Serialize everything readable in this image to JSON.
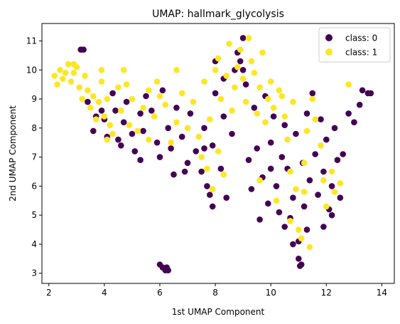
{
  "chart_data": {
    "type": "scatter",
    "title": "UMAP: hallmark_glycolysis",
    "xlabel": "1st UMAP Component",
    "ylabel": "2nd UMAP Component",
    "xlim": [
      1.75,
      14.45
    ],
    "ylim": [
      2.65,
      11.6
    ],
    "xticks": [
      2,
      4,
      6,
      8,
      10,
      12,
      14
    ],
    "yticks": [
      3,
      4,
      5,
      6,
      7,
      8,
      9,
      10,
      11
    ],
    "grid": false,
    "legend_position": "top-right",
    "colors": {
      "class0": "#440154",
      "class1": "#fde725"
    },
    "series": [
      {
        "name": "class: 0",
        "points": [
          [
            3.15,
            10.7
          ],
          [
            3.25,
            10.7
          ],
          [
            3.4,
            8.9
          ],
          [
            3.6,
            7.9
          ],
          [
            3.7,
            8.4
          ],
          [
            3.9,
            8.6
          ],
          [
            4.0,
            8.3
          ],
          [
            4.1,
            7.7
          ],
          [
            4.3,
            9.2
          ],
          [
            4.4,
            8.6
          ],
          [
            4.5,
            7.6
          ],
          [
            4.6,
            7.4
          ],
          [
            4.7,
            8.2
          ],
          [
            4.8,
            8.9
          ],
          [
            5.0,
            7.8
          ],
          [
            5.1,
            7.2
          ],
          [
            5.3,
            8.5
          ],
          [
            5.4,
            7.9
          ],
          [
            5.5,
            9.1
          ],
          [
            5.7,
            8.6
          ],
          [
            5.9,
            7.5
          ],
          [
            6.0,
            7.0
          ],
          [
            6.1,
            9.3
          ],
          [
            6.3,
            8.0
          ],
          [
            6.4,
            7.3
          ],
          [
            6.6,
            8.7
          ],
          [
            6.8,
            7.7
          ],
          [
            7.0,
            6.8
          ],
          [
            7.1,
            8.5
          ],
          [
            7.3,
            7.2
          ],
          [
            7.5,
            6.5
          ],
          [
            7.6,
            8.0
          ],
          [
            7.7,
            6.0
          ],
          [
            7.8,
            5.7
          ],
          [
            7.9,
            7.4
          ],
          [
            8.0,
            9.2
          ],
          [
            8.2,
            6.6
          ],
          [
            8.3,
            8.4
          ],
          [
            8.4,
            5.6
          ],
          [
            8.6,
            7.8
          ],
          [
            8.7,
            10.0
          ],
          [
            8.8,
            10.6
          ],
          [
            8.9,
            10.3
          ],
          [
            9.0,
            11.1
          ],
          [
            9.1,
            9.5
          ],
          [
            9.2,
            6.9
          ],
          [
            9.3,
            5.9
          ],
          [
            9.4,
            8.7
          ],
          [
            9.5,
            7.3
          ],
          [
            9.6,
            4.85
          ],
          [
            9.7,
            6.3
          ],
          [
            9.8,
            9.1
          ],
          [
            9.9,
            5.4
          ],
          [
            10.0,
            7.5
          ],
          [
            10.1,
            8.4
          ],
          [
            10.2,
            6.0
          ],
          [
            10.3,
            5.1
          ],
          [
            10.4,
            7.0
          ],
          [
            10.5,
            8.1
          ],
          [
            10.6,
            6.6
          ],
          [
            10.7,
            4.9
          ],
          [
            10.8,
            5.6
          ],
          [
            10.9,
            7.8
          ],
          [
            11.0,
            4.1
          ],
          [
            11.0,
            3.5
          ],
          [
            11.05,
            3.25
          ],
          [
            11.1,
            3.3
          ],
          [
            11.15,
            6.8
          ],
          [
            11.2,
            5.3
          ],
          [
            11.3,
            8.5
          ],
          [
            11.4,
            6.2
          ],
          [
            11.5,
            9.2
          ],
          [
            11.6,
            7.1
          ],
          [
            11.7,
            5.7
          ],
          [
            11.8,
            8.3
          ],
          [
            11.9,
            6.5
          ],
          [
            12.0,
            7.6
          ],
          [
            12.1,
            5.2
          ],
          [
            12.2,
            6.0
          ],
          [
            12.3,
            8.0
          ],
          [
            12.4,
            6.9
          ],
          [
            12.5,
            5.6
          ],
          [
            12.6,
            7.1
          ],
          [
            12.8,
            8.5
          ],
          [
            13.0,
            8.2
          ],
          [
            13.2,
            8.8
          ],
          [
            13.3,
            9.3
          ],
          [
            13.5,
            9.2
          ],
          [
            13.6,
            9.2
          ],
          [
            6.0,
            3.3
          ],
          [
            6.1,
            3.2
          ],
          [
            6.2,
            3.1
          ],
          [
            6.3,
            3.1
          ],
          [
            6.25,
            3.2
          ],
          [
            10.0,
            6.6
          ],
          [
            10.5,
            4.6
          ],
          [
            10.8,
            4.0
          ],
          [
            11.3,
            4.5
          ],
          [
            11.9,
            4.6
          ],
          [
            12.2,
            5.0
          ],
          [
            9.0,
            10.0
          ],
          [
            8.3,
            9.7
          ],
          [
            8.0,
            10.3
          ],
          [
            7.9,
            5.3
          ],
          [
            7.6,
            7.3
          ],
          [
            6.9,
            6.5
          ],
          [
            5.3,
            6.9
          ],
          [
            6.5,
            6.4
          ]
        ]
      },
      {
        "name": "class: 1",
        "points": [
          [
            2.2,
            9.8
          ],
          [
            2.3,
            9.5
          ],
          [
            2.4,
            10.0
          ],
          [
            2.5,
            9.7
          ],
          [
            2.6,
            9.9
          ],
          [
            2.7,
            10.2
          ],
          [
            2.8,
            9.6
          ],
          [
            2.9,
            9.9
          ],
          [
            3.0,
            10.1
          ],
          [
            3.1,
            9.4
          ],
          [
            3.2,
            9.0
          ],
          [
            3.3,
            9.8
          ],
          [
            3.4,
            9.3
          ],
          [
            3.5,
            8.7
          ],
          [
            3.6,
            9.1
          ],
          [
            3.7,
            8.3
          ],
          [
            3.8,
            8.9
          ],
          [
            3.9,
            9.6
          ],
          [
            4.0,
            8.4
          ],
          [
            4.1,
            9.0
          ],
          [
            4.2,
            8.1
          ],
          [
            4.3,
            7.8
          ],
          [
            4.5,
            9.4
          ],
          [
            4.6,
            8.6
          ],
          [
            4.8,
            9.5
          ],
          [
            4.9,
            8.1
          ],
          [
            5.0,
            9.0
          ],
          [
            5.2,
            7.9
          ],
          [
            5.4,
            8.7
          ],
          [
            5.6,
            9.3
          ],
          [
            5.8,
            8.4
          ],
          [
            6.0,
            9.1
          ],
          [
            6.2,
            8.8
          ],
          [
            6.4,
            7.5
          ],
          [
            6.6,
            8.2
          ],
          [
            6.8,
            9.2
          ],
          [
            7.0,
            8.0
          ],
          [
            7.2,
            8.9
          ],
          [
            7.4,
            7.7
          ],
          [
            7.6,
            9.6
          ],
          [
            7.8,
            8.3
          ],
          [
            8.0,
            10.0
          ],
          [
            8.1,
            10.4
          ],
          [
            8.2,
            9.0
          ],
          [
            8.4,
            9.8
          ],
          [
            8.5,
            10.9
          ],
          [
            8.6,
            8.6
          ],
          [
            8.7,
            9.4
          ],
          [
            8.8,
            10.1
          ],
          [
            8.9,
            10.7
          ],
          [
            9.0,
            9.7
          ],
          [
            9.1,
            8.9
          ],
          [
            9.2,
            11.1
          ],
          [
            9.3,
            10.3
          ],
          [
            9.4,
            9.9
          ],
          [
            9.5,
            8.5
          ],
          [
            9.6,
            9.4
          ],
          [
            9.7,
            10.6
          ],
          [
            9.8,
            8.2
          ],
          [
            9.9,
            9.0
          ],
          [
            10.0,
            9.6
          ],
          [
            10.1,
            8.7
          ],
          [
            10.3,
            9.3
          ],
          [
            10.4,
            9.1
          ],
          [
            10.5,
            8.4
          ],
          [
            10.6,
            7.6
          ],
          [
            10.7,
            6.5
          ],
          [
            10.8,
            8.9
          ],
          [
            10.9,
            5.9
          ],
          [
            11.0,
            4.5
          ],
          [
            11.1,
            4.2
          ],
          [
            11.2,
            6.8
          ],
          [
            11.3,
            7.9
          ],
          [
            11.5,
            9.0
          ],
          [
            11.6,
            8.3
          ],
          [
            11.8,
            7.4
          ],
          [
            11.9,
            6.2
          ],
          [
            12.0,
            5.3
          ],
          [
            12.2,
            6.5
          ],
          [
            12.3,
            5.8
          ],
          [
            12.5,
            6.1
          ],
          [
            12.8,
            9.5
          ],
          [
            7.7,
            6.6
          ],
          [
            7.9,
            5.9
          ],
          [
            8.1,
            7.2
          ],
          [
            8.3,
            6.4
          ],
          [
            7.5,
            7.0
          ],
          [
            9.6,
            6.2
          ],
          [
            6.6,
            10.0
          ],
          [
            5.9,
            9.6
          ],
          [
            4.7,
            10.0
          ],
          [
            3.9,
            10.0
          ],
          [
            2.9,
            10.2
          ],
          [
            5.6,
            7.6
          ],
          [
            4.1,
            7.6
          ],
          [
            10.2,
            5.5
          ],
          [
            10.7,
            4.8
          ],
          [
            11.4,
            3.9
          ],
          [
            11.2,
            5.8
          ]
        ]
      }
    ]
  }
}
